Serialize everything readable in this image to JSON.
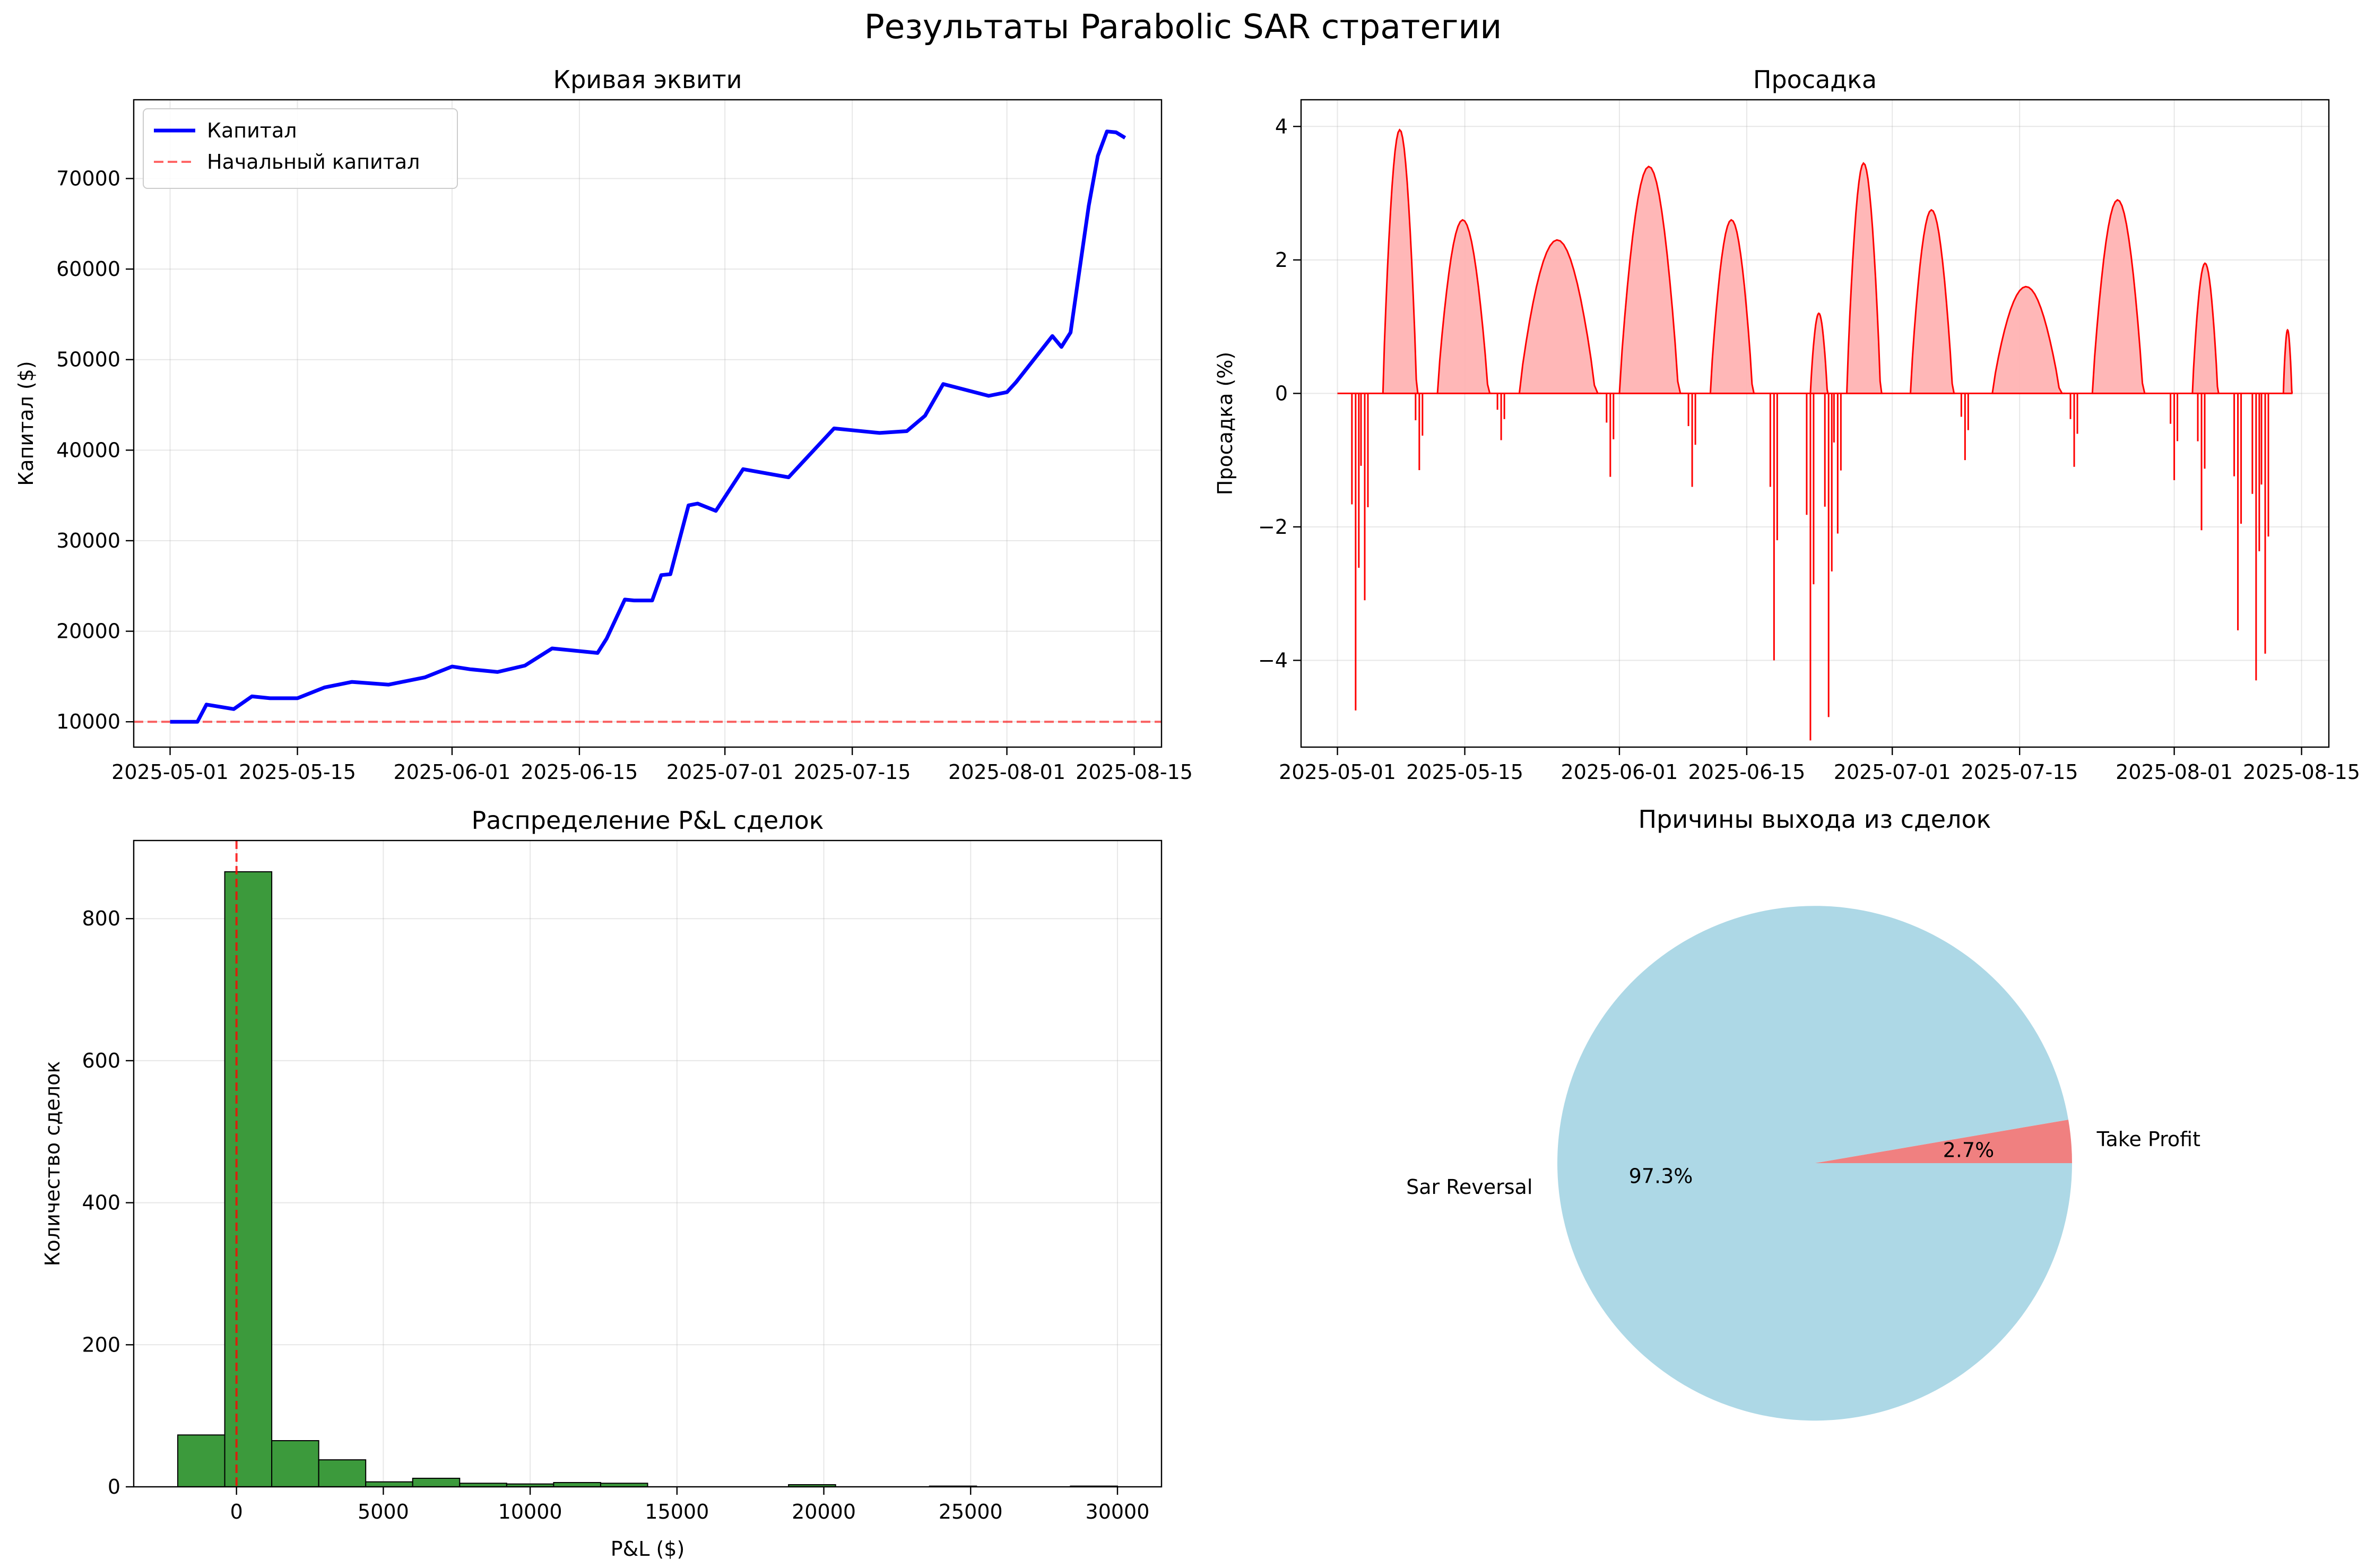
{
  "figure": {
    "title": "Результаты Parabolic SAR стратегии"
  },
  "chart_data": [
    {
      "id": "equity",
      "type": "line",
      "title": "Кривая эквити",
      "xlabel": "",
      "ylabel": "Капитал ($)",
      "x_ticks": [
        "2025-05-01",
        "2025-05-15",
        "2025-06-01",
        "2025-06-15",
        "2025-07-01",
        "2025-07-15",
        "2025-08-01",
        "2025-08-15"
      ],
      "y_ticks": [
        10000,
        20000,
        30000,
        40000,
        50000,
        60000,
        70000
      ],
      "xlim": [
        "2025-04-27",
        "2025-08-18"
      ],
      "ylim": [
        7200,
        78700
      ],
      "grid": true,
      "legend": "top-left",
      "series": [
        {
          "name": "Капитал",
          "color": "#0000ff",
          "style": "solid",
          "x": [
            "2025-05-01",
            "2025-05-04",
            "2025-05-05",
            "2025-05-08",
            "2025-05-10",
            "2025-05-12",
            "2025-05-15",
            "2025-05-18",
            "2025-05-21",
            "2025-05-25",
            "2025-05-29",
            "2025-06-01",
            "2025-06-03",
            "2025-06-06",
            "2025-06-09",
            "2025-06-12",
            "2025-06-14",
            "2025-06-17",
            "2025-06-18",
            "2025-06-20",
            "2025-06-21",
            "2025-06-23",
            "2025-06-24",
            "2025-06-25",
            "2025-06-27",
            "2025-06-28",
            "2025-06-30",
            "2025-07-03",
            "2025-07-08",
            "2025-07-13",
            "2025-07-15",
            "2025-07-18",
            "2025-07-21",
            "2025-07-23",
            "2025-07-25",
            "2025-07-30",
            "2025-08-01",
            "2025-08-02",
            "2025-08-06",
            "2025-08-07",
            "2025-08-08",
            "2025-08-09",
            "2025-08-10",
            "2025-08-11",
            "2025-08-12",
            "2025-08-13",
            "2025-08-14"
          ],
          "values": [
            10000,
            10000,
            11900,
            11400,
            12800,
            12600,
            12600,
            13800,
            14400,
            14100,
            14900,
            16100,
            15800,
            15500,
            16200,
            18100,
            17900,
            17600,
            19200,
            23500,
            23400,
            23400,
            26200,
            26300,
            33900,
            34100,
            33300,
            37900,
            37000,
            42400,
            42200,
            41900,
            42100,
            43800,
            47300,
            46000,
            46400,
            47500,
            52600,
            51400,
            53000,
            60000,
            67000,
            72500,
            75200,
            75100,
            74500
          ]
        },
        {
          "name": "Начальный капитал",
          "color": "#ff0000",
          "style": "dashed",
          "value": 10000
        }
      ]
    },
    {
      "id": "drawdown",
      "type": "area",
      "title": "Просадка",
      "xlabel": "",
      "ylabel": "Просадка (%)",
      "x_ticks": [
        "2025-05-01",
        "2025-05-15",
        "2025-06-01",
        "2025-06-15",
        "2025-07-01",
        "2025-07-15",
        "2025-08-01",
        "2025-08-15"
      ],
      "y_ticks": [
        -4,
        -2,
        0,
        2,
        4
      ],
      "xlim": [
        "2025-04-27",
        "2025-08-18"
      ],
      "ylim": [
        -5.3,
        4.4
      ],
      "grid": true,
      "color": "#ff0000",
      "fill_color": "#ffb3b3",
      "humps": [
        {
          "start": "2025-05-06",
          "end": "2025-05-10",
          "peak": 3.95
        },
        {
          "start": "2025-05-12",
          "end": "2025-05-18",
          "peak": 2.6
        },
        {
          "start": "2025-05-21",
          "end": "2025-05-30",
          "peak": 2.3
        },
        {
          "start": "2025-06-01",
          "end": "2025-06-08",
          "peak": 3.4
        },
        {
          "start": "2025-06-11",
          "end": "2025-06-16",
          "peak": 2.6
        },
        {
          "start": "2025-06-22",
          "end": "2025-06-24",
          "peak": 1.2
        },
        {
          "start": "2025-06-26",
          "end": "2025-06-30",
          "peak": 3.45
        },
        {
          "start": "2025-07-03",
          "end": "2025-07-08",
          "peak": 2.75
        },
        {
          "start": "2025-07-12",
          "end": "2025-07-20",
          "peak": 1.6
        },
        {
          "start": "2025-07-23",
          "end": "2025-07-29",
          "peak": 2.9
        },
        {
          "start": "2025-08-03",
          "end": "2025-08-06",
          "peak": 1.95
        },
        {
          "start": "2025-08-13",
          "end": "2025-08-14",
          "peak": 0.95
        }
      ],
      "dips": [
        {
          "x": "2025-05-03",
          "value": -4.75
        },
        {
          "x": "2025-05-04",
          "value": -3.1
        },
        {
          "x": "2025-05-10",
          "value": -1.15
        },
        {
          "x": "2025-05-19",
          "value": -0.7
        },
        {
          "x": "2025-05-31",
          "value": -1.25
        },
        {
          "x": "2025-06-09",
          "value": -1.4
        },
        {
          "x": "2025-06-18",
          "value": -4.0
        },
        {
          "x": "2025-06-22",
          "value": -5.2
        },
        {
          "x": "2025-06-24",
          "value": -4.85
        },
        {
          "x": "2025-06-25",
          "value": -2.1
        },
        {
          "x": "2025-07-09",
          "value": -1.0
        },
        {
          "x": "2025-07-21",
          "value": -1.1
        },
        {
          "x": "2025-08-01",
          "value": -1.3
        },
        {
          "x": "2025-08-04",
          "value": -2.05
        },
        {
          "x": "2025-08-08",
          "value": -3.55
        },
        {
          "x": "2025-08-10",
          "value": -4.3
        },
        {
          "x": "2025-08-11",
          "value": -3.9
        }
      ]
    },
    {
      "id": "pnl",
      "type": "bar",
      "title": "Распределение P&L сделок",
      "xlabel": "P&L ($)",
      "ylabel": "Количество сделок",
      "x_ticks": [
        0,
        5000,
        10000,
        15000,
        20000,
        25000,
        30000
      ],
      "y_ticks": [
        0,
        200,
        400,
        600,
        800
      ],
      "xlim": [
        -3500,
        31500
      ],
      "ylim": [
        0,
        910
      ],
      "grid": true,
      "color": "#3c9a3c",
      "bin_edges": [
        -2000,
        -400,
        1200,
        2800,
        4400,
        6000,
        7600,
        9200,
        10800,
        12400,
        14000,
        15600,
        17200,
        18800,
        20400,
        22000,
        23600,
        25200,
        26800,
        28400,
        30000
      ],
      "values": [
        73,
        866,
        65,
        38,
        7,
        12,
        5,
        4,
        6,
        5,
        0,
        0,
        0,
        3,
        0,
        0,
        1,
        0,
        0,
        1
      ],
      "vline": {
        "value": 0,
        "color": "#ff0000",
        "style": "dashed"
      }
    },
    {
      "id": "exits",
      "type": "pie",
      "title": "Причины выхода из сделок",
      "slices": [
        {
          "label": "Take Profit",
          "value": 2.7,
          "pct_label": "2.7%",
          "color": "#f08080"
        },
        {
          "label": "Sar Reversal",
          "value": 97.3,
          "pct_label": "97.3%",
          "color": "#add8e6"
        }
      ]
    }
  ]
}
